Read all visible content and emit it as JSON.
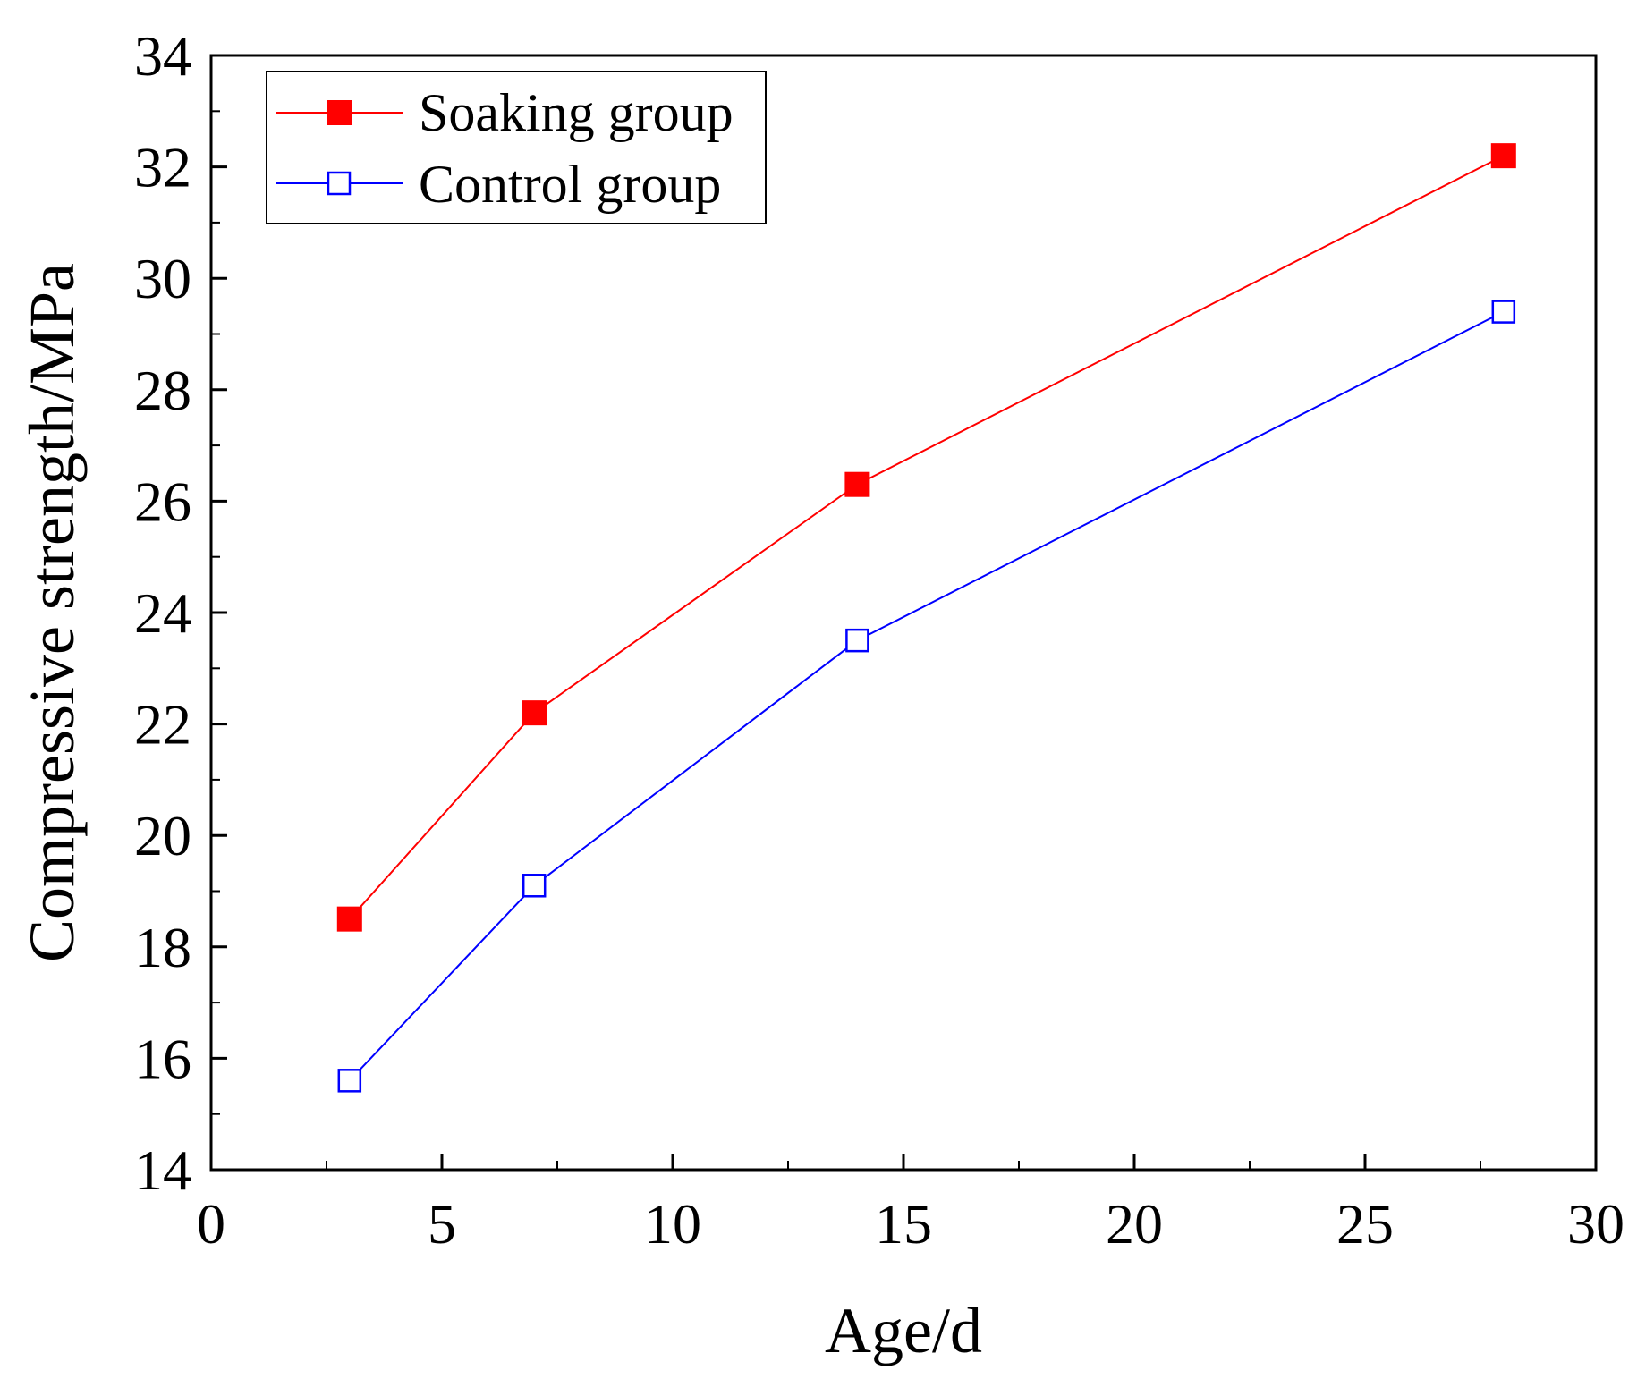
{
  "chart_data": {
    "type": "line",
    "xlabel": "Age/d",
    "ylabel": "Compressive strength/MPa",
    "xlim": [
      0,
      30
    ],
    "ylim": [
      14,
      34
    ],
    "x_ticks": [
      0,
      5,
      10,
      15,
      20,
      25,
      30
    ],
    "x_tick_labels": [
      "0",
      "5",
      "10",
      "15",
      "20",
      "25",
      "30"
    ],
    "y_ticks": [
      14,
      16,
      18,
      20,
      22,
      24,
      26,
      28,
      30,
      32,
      34
    ],
    "y_tick_labels": [
      "14",
      "16",
      "18",
      "20",
      "22",
      "24",
      "26",
      "28",
      "30",
      "32",
      "34"
    ],
    "legend_position": "top-left",
    "grid": false,
    "series": [
      {
        "name": "Soaking group",
        "color": "#ff0000",
        "marker": "filled-square",
        "x": [
          3,
          7,
          14,
          28
        ],
        "values": [
          18.5,
          22.2,
          26.3,
          32.2
        ]
      },
      {
        "name": "Control group",
        "color": "#0000ff",
        "marker": "open-square",
        "x": [
          3,
          7,
          14,
          28
        ],
        "values": [
          15.6,
          19.1,
          23.5,
          29.4
        ]
      }
    ]
  }
}
